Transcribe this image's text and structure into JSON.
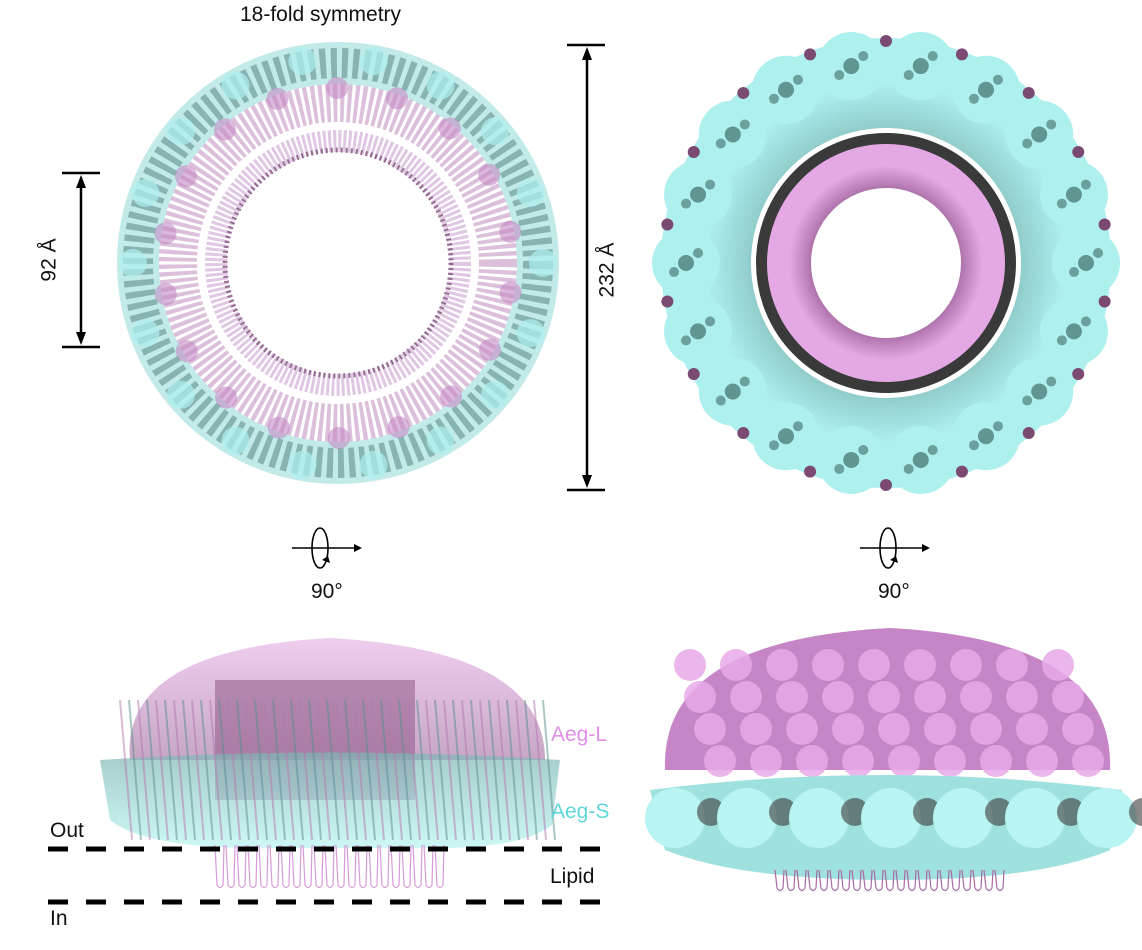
{
  "title": "18-fold symmetry",
  "dimensions": {
    "inner_diameter": "92 Å",
    "outer_diameter": "232 Å"
  },
  "rotation": {
    "left_label": "90°",
    "right_label": "90°",
    "icon": "rotate-90-icon"
  },
  "side_view": {
    "aeg_l_label": "Aeg-L",
    "aeg_s_label": "Aeg-S",
    "out_label": "Out",
    "lipid_label": "Lipid",
    "in_label": "In"
  },
  "colors": {
    "aeg_l": "#df8fe6",
    "aeg_s": "#5fd6d9",
    "aeg_l_surface": "#d99ad9",
    "aeg_s_surface": "#aef0ee",
    "dark_purple": "#7b4a72",
    "dark_teal": "#5c8f8c"
  }
}
